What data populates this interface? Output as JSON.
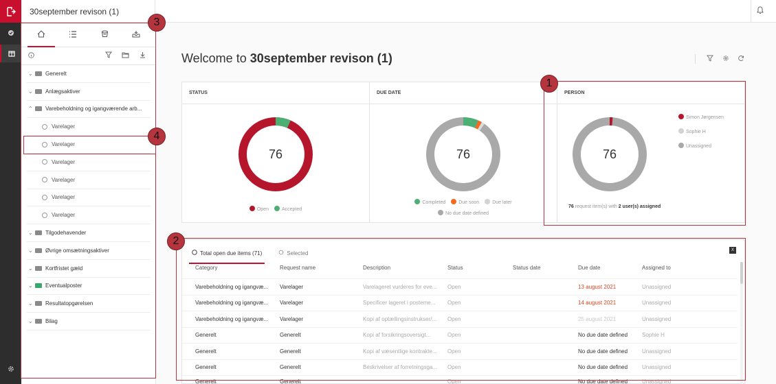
{
  "app": {
    "project_title": "30september revison (1)",
    "colors": {
      "brand": "#c8102e",
      "open": "#b5162b",
      "accepted": "#4caf73",
      "due_soon": "#f26b21",
      "due_later": "#c8c8c8",
      "no_due": "#a9a9a9"
    }
  },
  "sidebar": {
    "tabs": [
      {
        "icon": "home-icon"
      },
      {
        "icon": "list-icon"
      },
      {
        "icon": "bucket-icon"
      },
      {
        "icon": "inbox-download-icon"
      }
    ],
    "tree": [
      {
        "type": "group",
        "label": "Generelt",
        "expanded": false
      },
      {
        "type": "group",
        "label": "Anlægsaktiver",
        "expanded": false
      },
      {
        "type": "group",
        "label": "Varebeholdning og igangværende arb...",
        "expanded": true
      },
      {
        "type": "child",
        "label": "Varelager"
      },
      {
        "type": "child",
        "label": "Varelager"
      },
      {
        "type": "child",
        "label": "Varelager"
      },
      {
        "type": "child",
        "label": "Varelager"
      },
      {
        "type": "child",
        "label": "Varelager"
      },
      {
        "type": "child",
        "label": "Varelager"
      },
      {
        "type": "group",
        "label": "Tilgodehavender",
        "expanded": false
      },
      {
        "type": "group",
        "label": "Øvrige omsætningsaktiver",
        "expanded": false
      },
      {
        "type": "group",
        "label": "Kortfristet gæld",
        "expanded": false
      },
      {
        "type": "group",
        "label": "Eventualposter",
        "expanded": false,
        "done": true
      },
      {
        "type": "group",
        "label": "Resultatopgørelsen",
        "expanded": false
      },
      {
        "type": "group",
        "label": "Bilag",
        "expanded": false
      }
    ]
  },
  "main": {
    "welcome_prefix": "Welcome to",
    "welcome_name": "30september revison (1)",
    "cards": {
      "status": {
        "title": "STATUS",
        "total": "76",
        "legend": [
          "Open",
          "Accepted"
        ]
      },
      "due": {
        "title": "DUE DATE",
        "total": "76",
        "legend": [
          "Completed",
          "Due soon",
          "Due later"
        ],
        "legend2": "No due date defined"
      },
      "person": {
        "title": "PERSON",
        "total": "76",
        "legend": [
          "Simon Jørgensen",
          "Sophie H",
          "Unassigned"
        ],
        "note_count": "76",
        "note_mid": "request item(s) with",
        "note_users": "2 user(s) assigned"
      }
    },
    "table": {
      "tabs": [
        "Total open due items (71)",
        "Selected"
      ],
      "columns": [
        "Category",
        "Request name",
        "Description",
        "Status",
        "Status date",
        "Due date",
        "Assigned to"
      ],
      "rows": [
        [
          "Varebeholdning og igangvæ...",
          "Varelager",
          "Varelageret vurderes for eve...",
          "Open",
          "",
          "13 august 2021",
          "Unassigned"
        ],
        [
          "Varebeholdning og igangvæ...",
          "Varelager",
          "Specificer lageret i posteme...",
          "Open",
          "",
          "14 august 2021",
          "Unassigned"
        ],
        [
          "Varebeholdning og igangvæ...",
          "Varelager",
          "Kopi af optællingsinstrukser/...",
          "Open",
          "",
          "25 august 2021",
          "Unassigned"
        ],
        [
          "Generelt",
          "Generelt",
          "Kopi af forsikringsoversigt...",
          "Open",
          "",
          "No due date defined",
          "Sophie H"
        ],
        [
          "Generelt",
          "Generelt",
          "Kopi af væsentlige kontrakte...",
          "Open",
          "",
          "No due date defined",
          "Unassigned"
        ],
        [
          "Generelt",
          "Generelt",
          "Beskrivelser af forretningsga...",
          "Open",
          "",
          "No due date defined",
          "Unassigned"
        ],
        [
          "Generelt",
          "Generelt",
          "",
          "Open",
          "",
          "No due date defined",
          "Unassigned"
        ]
      ]
    }
  },
  "annotations": [
    "1",
    "2",
    "3",
    "4"
  ]
}
